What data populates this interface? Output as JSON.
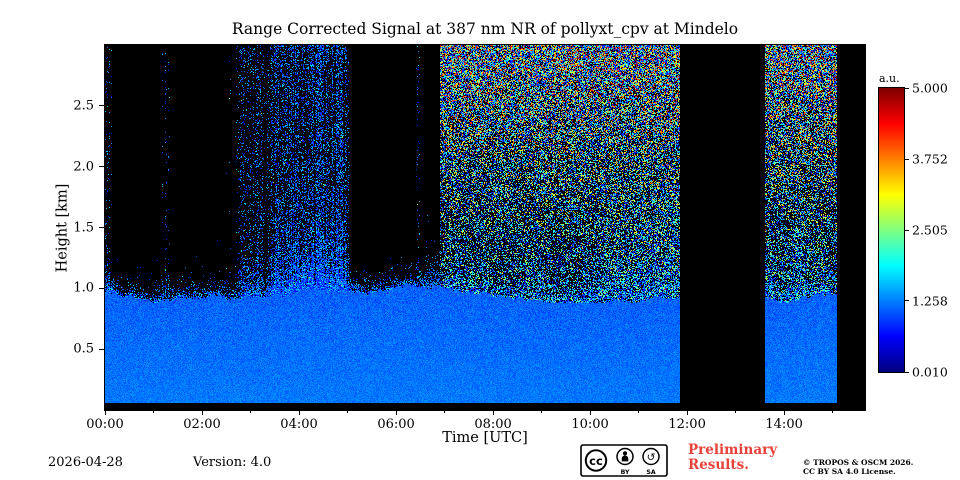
{
  "chart_data": {
    "type": "heatmap",
    "title": "Range Corrected Signal at 387 nm NR of pollyxt_cpv at Mindelo",
    "xlabel": "Time [UTC]",
    "ylabel": "Height [km]",
    "x_ticks": [
      "00:00",
      "02:00",
      "04:00",
      "06:00",
      "08:00",
      "10:00",
      "12:00",
      "14:00"
    ],
    "x_tick_hours": [
      0,
      2,
      4,
      6,
      8,
      10,
      12,
      14
    ],
    "x_range_hours": [
      0,
      15.667
    ],
    "y_ticks": [
      "0.5",
      "1.0",
      "1.5",
      "2.0",
      "2.5"
    ],
    "y_tick_km": [
      0.5,
      1.0,
      1.5,
      2.0,
      2.5
    ],
    "y_range_km": [
      0.0,
      3.0
    ],
    "grid": false,
    "colorbar": {
      "label": "a.u.",
      "tick_labels": [
        "5.000",
        "3.752",
        "2.505",
        "1.258",
        "0.010"
      ],
      "tick_values": [
        5.0,
        3.752,
        2.505,
        1.258,
        0.01
      ],
      "range": [
        0.01,
        5.0
      ],
      "colormap": "jet"
    },
    "features": {
      "description": "Strong boundary-layer signal (blue, ~0.9-1.1 km deep) across whole day; black overlap band at lowest bins; nighttime (00:00-06:36) upper range shows intermittent vertical blue noise streaks on black; daytime (from ~06:54) upper range filled with dense multicolour background noise increasing with height; full-column data gaps near 11:51-13:36 and after 15:05.",
      "lowest_bin_km": 0.06,
      "boundary_layer_top_km": 0.97,
      "night_noise_end_hour": 6.6,
      "day_noise_start_hour": 6.9,
      "data_gaps_hours": [
        [
          11.85,
          13.6
        ],
        [
          15.08,
          15.667
        ]
      ],
      "noise_seed": 1337
    }
  },
  "footer": {
    "date": "2026-04-28",
    "version": "Version: 4.0",
    "preliminary_line1": "Preliminary",
    "preliminary_line2": "Results.",
    "preliminary_color": "#e8413a",
    "copyright_line1": "© TROPOS & OSCM 2026.",
    "copyright_line2": "CC BY SA 4.0 License.",
    "license_badge": "CC BY-SA"
  }
}
